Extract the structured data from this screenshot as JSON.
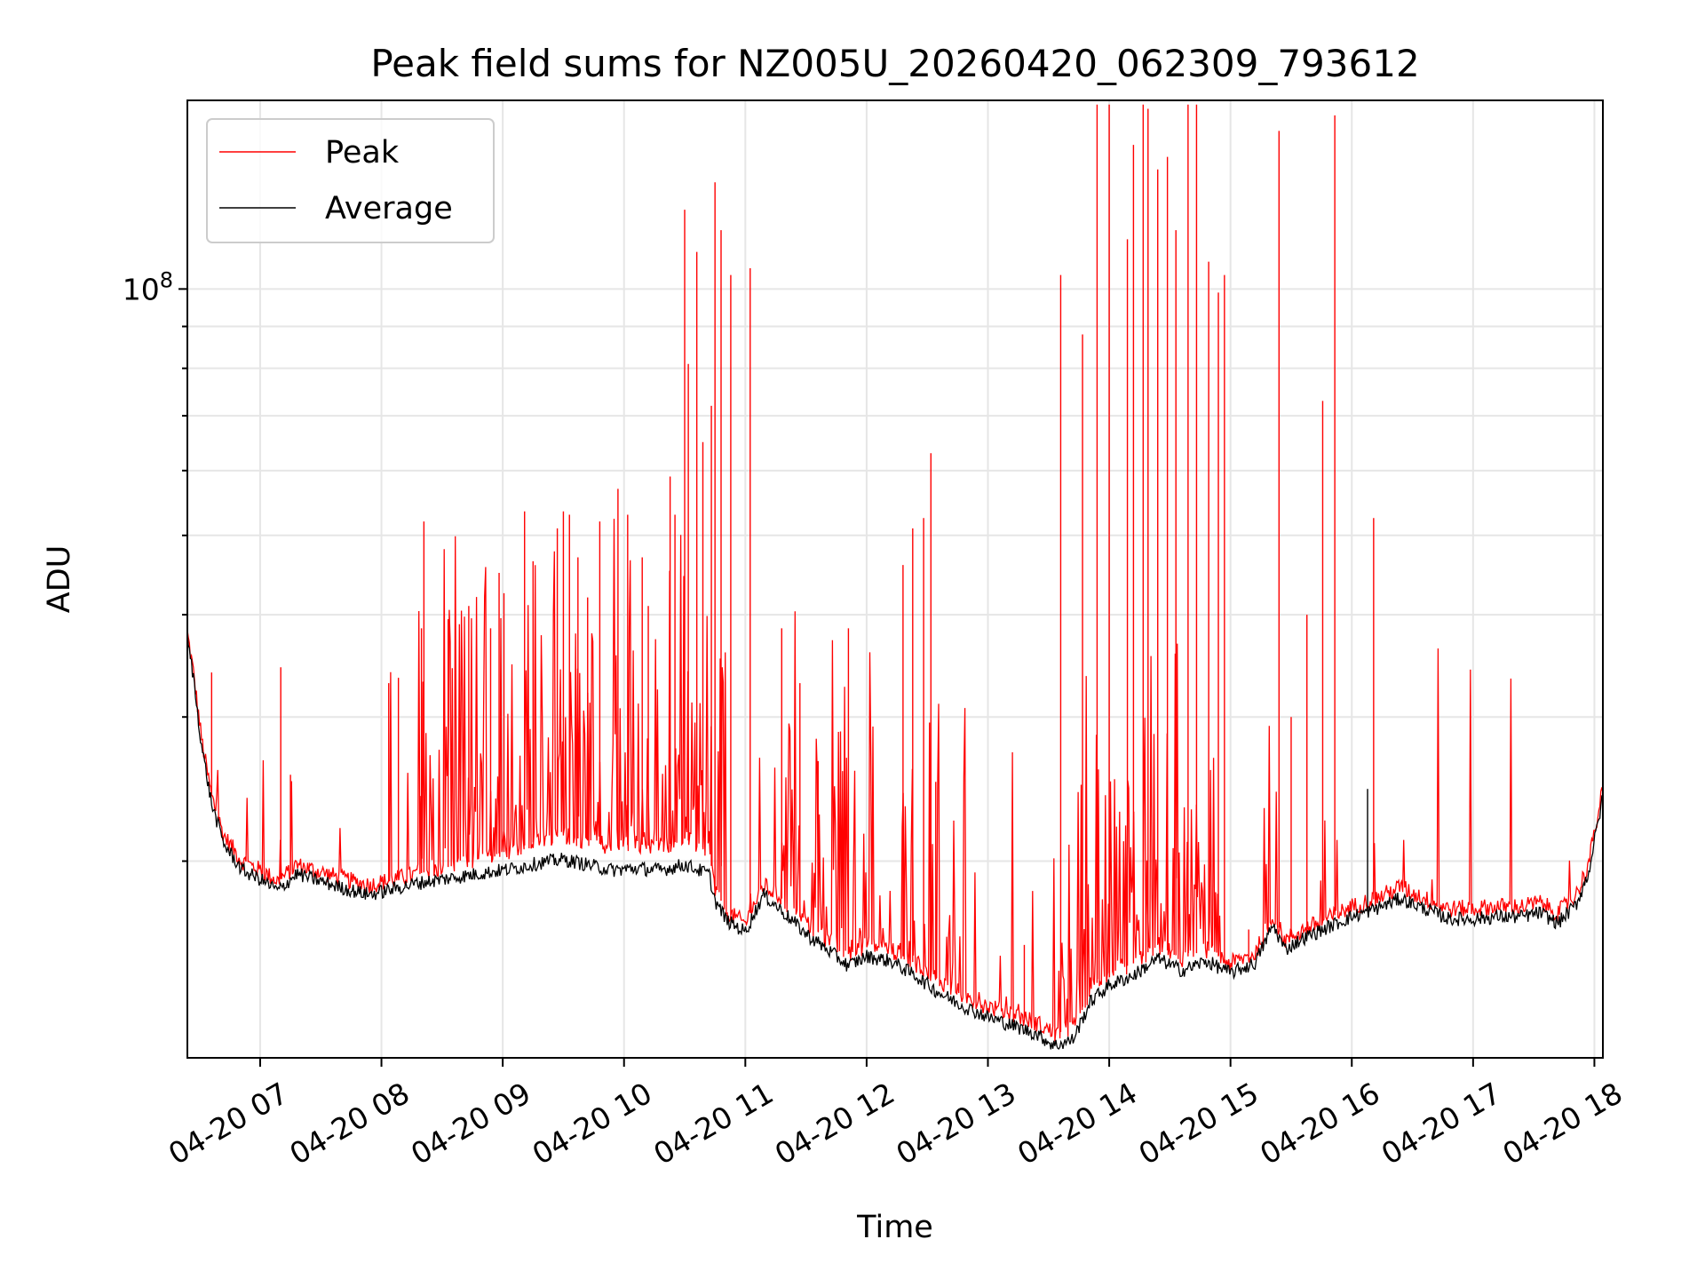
{
  "chart_data": {
    "type": "line",
    "title": "Peak field sums for NZ005U_20260420_062309_793612",
    "xlabel": "Time",
    "ylabel": "ADU",
    "yscale": "log",
    "ylim": [
      11500000,
      170000000
    ],
    "xlim_hours": [
      6.4,
      18.07
    ],
    "grid": true,
    "legend_position": "top-left",
    "x_ticks": [
      {
        "hour": 7,
        "label": "04-20 07"
      },
      {
        "hour": 8,
        "label": "04-20 08"
      },
      {
        "hour": 9,
        "label": "04-20 09"
      },
      {
        "hour": 10,
        "label": "04-20 10"
      },
      {
        "hour": 11,
        "label": "04-20 11"
      },
      {
        "hour": 12,
        "label": "04-20 12"
      },
      {
        "hour": 13,
        "label": "04-20 13"
      },
      {
        "hour": 14,
        "label": "04-20 14"
      },
      {
        "hour": 15,
        "label": "04-20 15"
      },
      {
        "hour": 16,
        "label": "04-20 16"
      },
      {
        "hour": 17,
        "label": "04-20 17"
      },
      {
        "hour": 18,
        "label": "04-20 18"
      }
    ],
    "y_ticks": [
      {
        "value": 100000000,
        "base": "10",
        "exp": "8"
      }
    ],
    "series": [
      {
        "name": "Peak",
        "color": "#ff0000",
        "x": [
          6.4,
          6.45,
          6.52,
          6.6,
          6.7,
          6.85,
          7.0,
          7.15,
          7.3,
          7.5,
          7.7,
          7.9,
          8.1,
          8.3,
          8.5,
          8.7,
          8.9,
          9.1,
          9.3,
          9.5,
          9.7,
          9.9,
          10.1,
          10.3,
          10.5,
          10.7,
          10.75,
          10.85,
          11.0,
          11.15,
          11.3,
          11.5,
          11.7,
          11.85,
          12.0,
          12.2,
          12.4,
          12.6,
          12.8,
          13.0,
          13.2,
          13.4,
          13.55,
          13.7,
          13.85,
          14.0,
          14.2,
          14.4,
          14.6,
          14.8,
          15.0,
          15.2,
          15.35,
          15.45,
          15.6,
          15.8,
          16.0,
          16.2,
          16.4,
          16.6,
          16.8,
          17.0,
          17.2,
          17.4,
          17.55,
          17.7,
          17.85,
          17.95,
          18.07
        ],
        "y": [
          38000000,
          34000000,
          28000000,
          24000000,
          21500000,
          20000000,
          19500000,
          18900000,
          19800000,
          19400000,
          19000000,
          18700000,
          19000000,
          19300000,
          19600000,
          19900000,
          20300000,
          20700000,
          21200000,
          21500000,
          21200000,
          20800000,
          21000000,
          20800000,
          21300000,
          20600000,
          18500000,
          17300000,
          16800000,
          18700000,
          18000000,
          16800000,
          16000000,
          15400000,
          15800000,
          15600000,
          15000000,
          14300000,
          13700000,
          13300000,
          13000000,
          12700000,
          12300000,
          12500000,
          14000000,
          14600000,
          15000000,
          15800000,
          15200000,
          15600000,
          15000000,
          15400000,
          17200000,
          16000000,
          16500000,
          17000000,
          17600000,
          18000000,
          18600000,
          18000000,
          17500000,
          17500000,
          17600000,
          17600000,
          17800000,
          17300000,
          18200000,
          19800000,
          24500000
        ],
        "spikes": [
          {
            "x": 6.6,
            "y": 34000000
          },
          {
            "x": 7.17,
            "y": 34500000
          },
          {
            "x": 7.25,
            "y": 25500000
          },
          {
            "x": 8.06,
            "y": 33000000
          },
          {
            "x": 8.14,
            "y": 33500000
          },
          {
            "x": 8.33,
            "y": 38500000
          },
          {
            "x": 8.35,
            "y": 52000000
          },
          {
            "x": 8.55,
            "y": 39500000
          },
          {
            "x": 8.72,
            "y": 41000000
          },
          {
            "x": 8.9,
            "y": 38500000
          },
          {
            "x": 8.97,
            "y": 45000000
          },
          {
            "x": 9.01,
            "y": 42500000
          },
          {
            "x": 9.18,
            "y": 53500000
          },
          {
            "x": 9.25,
            "y": 46500000
          },
          {
            "x": 9.45,
            "y": 51000000
          },
          {
            "x": 9.5,
            "y": 53500000
          },
          {
            "x": 9.55,
            "y": 53000000
          },
          {
            "x": 9.62,
            "y": 47000000
          },
          {
            "x": 9.7,
            "y": 42000000
          },
          {
            "x": 9.8,
            "y": 52000000
          },
          {
            "x": 9.95,
            "y": 57000000
          },
          {
            "x": 10.03,
            "y": 53000000
          },
          {
            "x": 10.15,
            "y": 47000000
          },
          {
            "x": 10.2,
            "y": 41000000
          },
          {
            "x": 10.38,
            "y": 59000000
          },
          {
            "x": 10.42,
            "y": 53000000
          },
          {
            "x": 10.5,
            "y": 125000000
          },
          {
            "x": 10.53,
            "y": 81000000
          },
          {
            "x": 10.6,
            "y": 111000000
          },
          {
            "x": 10.65,
            "y": 65000000
          },
          {
            "x": 10.72,
            "y": 72000000
          },
          {
            "x": 10.75,
            "y": 135000000
          },
          {
            "x": 10.8,
            "y": 118000000
          },
          {
            "x": 10.88,
            "y": 104000000
          },
          {
            "x": 11.04,
            "y": 106000000
          },
          {
            "x": 11.3,
            "y": 38500000
          },
          {
            "x": 11.45,
            "y": 33000000
          },
          {
            "x": 11.6,
            "y": 26500000
          },
          {
            "x": 11.85,
            "y": 38500000
          },
          {
            "x": 12.3,
            "y": 46000000
          },
          {
            "x": 12.38,
            "y": 51000000
          },
          {
            "x": 12.47,
            "y": 52500000
          },
          {
            "x": 12.53,
            "y": 63000000
          },
          {
            "x": 12.57,
            "y": 25000000
          },
          {
            "x": 13.3,
            "y": 15800000
          },
          {
            "x": 13.6,
            "y": 104000000
          },
          {
            "x": 13.78,
            "y": 88000000
          },
          {
            "x": 13.9,
            "y": 168000000
          },
          {
            "x": 14.0,
            "y": 168000000
          },
          {
            "x": 14.15,
            "y": 115000000
          },
          {
            "x": 14.2,
            "y": 150000000
          },
          {
            "x": 14.28,
            "y": 168000000
          },
          {
            "x": 14.32,
            "y": 166000000
          },
          {
            "x": 14.4,
            "y": 140000000
          },
          {
            "x": 14.48,
            "y": 145000000
          },
          {
            "x": 14.55,
            "y": 118000000
          },
          {
            "x": 14.65,
            "y": 168000000
          },
          {
            "x": 14.72,
            "y": 168000000
          },
          {
            "x": 14.82,
            "y": 108000000
          },
          {
            "x": 14.9,
            "y": 99000000
          },
          {
            "x": 14.95,
            "y": 104000000
          },
          {
            "x": 15.15,
            "y": 16500000
          },
          {
            "x": 15.4,
            "y": 156000000
          },
          {
            "x": 15.5,
            "y": 30000000
          },
          {
            "x": 15.63,
            "y": 40000000
          },
          {
            "x": 15.76,
            "y": 73000000
          },
          {
            "x": 15.86,
            "y": 163000000
          },
          {
            "x": 16.18,
            "y": 52500000
          }
        ]
      },
      {
        "name": "Average",
        "color": "#000000",
        "x": [
          6.4,
          6.45,
          6.52,
          6.6,
          6.7,
          6.85,
          7.0,
          7.15,
          7.3,
          7.5,
          7.7,
          7.9,
          8.1,
          8.3,
          8.5,
          8.7,
          8.9,
          9.1,
          9.3,
          9.5,
          9.7,
          9.9,
          10.1,
          10.3,
          10.5,
          10.7,
          10.75,
          10.85,
          11.0,
          11.15,
          11.3,
          11.5,
          11.7,
          11.85,
          12.0,
          12.2,
          12.4,
          12.6,
          12.8,
          13.0,
          13.2,
          13.4,
          13.55,
          13.7,
          13.85,
          14.0,
          14.2,
          14.4,
          14.6,
          14.8,
          15.0,
          15.2,
          15.35,
          15.45,
          15.6,
          15.8,
          16.0,
          16.2,
          16.4,
          16.6,
          16.8,
          17.0,
          17.2,
          17.4,
          17.55,
          17.7,
          17.85,
          17.95,
          18.07
        ],
        "y": [
          37500000,
          33500000,
          27500000,
          23500000,
          21000000,
          19500000,
          19000000,
          18400000,
          19300000,
          18900000,
          18500000,
          18200000,
          18500000,
          18800000,
          19000000,
          19200000,
          19400000,
          19600000,
          19900000,
          20100000,
          19800000,
          19500000,
          19600000,
          19500000,
          19800000,
          19300000,
          17900000,
          16900000,
          16400000,
          18200000,
          17400000,
          16300000,
          15500000,
          14900000,
          15300000,
          15100000,
          14500000,
          13800000,
          13300000,
          12900000,
          12600000,
          12300000,
          11900000,
          12100000,
          13500000,
          14100000,
          14500000,
          15200000,
          14700000,
          15100000,
          14600000,
          15000000,
          16700000,
          15600000,
          16100000,
          16600000,
          17100000,
          17500000,
          18000000,
          17500000,
          17000000,
          17000000,
          17100000,
          17100000,
          17300000,
          16800000,
          17700000,
          19300000,
          24000000
        ],
        "spikes": [
          {
            "x": 16.13,
            "y": 24500000
          }
        ]
      }
    ]
  }
}
